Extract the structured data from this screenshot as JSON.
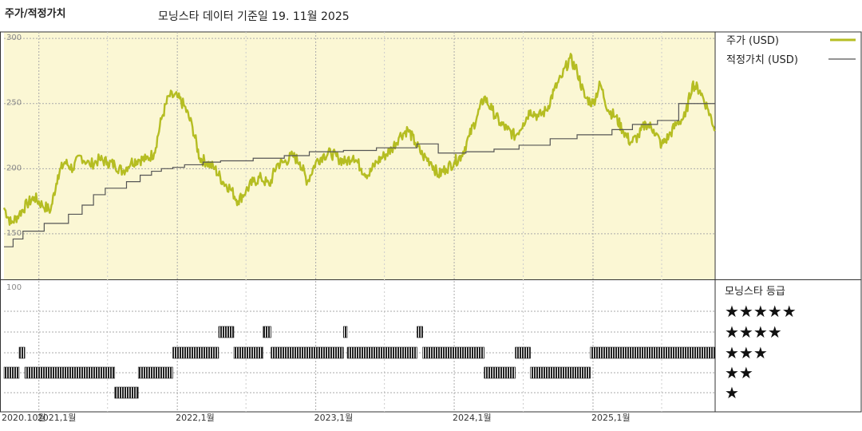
{
  "header": {
    "title": "주가/적정가치",
    "subtitle": "모닝스타 데이터 기준일 19. 11월 2025"
  },
  "colors": {
    "price": "#b5bd22",
    "fair": "#555555",
    "panel_bg": "#fbf7d4",
    "rating_bar": "#222222"
  },
  "chart_data": [
    {
      "type": "line",
      "legend_position": "right",
      "yticks": [
        150,
        200,
        250,
        300
      ],
      "ylim": [
        115,
        305
      ],
      "xlim": [
        "2020-10-01",
        "2025-11-19"
      ],
      "xtick_labels": [
        {
          "date": "2020-10-01",
          "label": "2020.10월"
        },
        {
          "date": "2021-01-01",
          "label": "2021,1월"
        },
        {
          "date": "2022-01-01",
          "label": "2022,1월"
        },
        {
          "date": "2023-01-01",
          "label": "2023,1월"
        },
        {
          "date": "2024-01-01",
          "label": "2024,1월"
        },
        {
          "date": "2025-01-01",
          "label": "2025,1월"
        }
      ],
      "grid": true,
      "series": [
        {
          "name": "주가 (USD)",
          "key": "price",
          "x": [
            "2020-10-01",
            "2020-10-20",
            "2020-11-10",
            "2020-12-01",
            "2020-12-20",
            "2021-01-10",
            "2021-02-01",
            "2021-02-20",
            "2021-03-10",
            "2021-04-01",
            "2021-04-20",
            "2021-05-15",
            "2021-06-10",
            "2021-07-01",
            "2021-07-20",
            "2021-08-10",
            "2021-09-01",
            "2021-09-20",
            "2021-10-10",
            "2021-11-01",
            "2021-11-20",
            "2021-12-10",
            "2022-01-01",
            "2022-01-20",
            "2022-02-10",
            "2022-03-01",
            "2022-03-20",
            "2022-04-10",
            "2022-05-01",
            "2022-05-20",
            "2022-06-10",
            "2022-07-01",
            "2022-07-20",
            "2022-08-10",
            "2022-09-01",
            "2022-09-20",
            "2022-10-10",
            "2022-11-01",
            "2022-11-20",
            "2022-12-10",
            "2023-01-01",
            "2023-01-20",
            "2023-02-10",
            "2023-03-01",
            "2023-03-20",
            "2023-04-10",
            "2023-05-01",
            "2023-05-20",
            "2023-06-10",
            "2023-07-01",
            "2023-07-20",
            "2023-08-10",
            "2023-09-01",
            "2023-09-20",
            "2023-10-10",
            "2023-11-01",
            "2023-11-20",
            "2023-12-10",
            "2024-01-01",
            "2024-01-20",
            "2024-02-10",
            "2024-03-01",
            "2024-03-20",
            "2024-04-10",
            "2024-05-01",
            "2024-05-20",
            "2024-06-10",
            "2024-07-01",
            "2024-07-20",
            "2024-08-10",
            "2024-09-01",
            "2024-09-20",
            "2024-10-10",
            "2024-11-01",
            "2024-11-20",
            "2024-12-10",
            "2025-01-01",
            "2025-01-20",
            "2025-02-10",
            "2025-03-01",
            "2025-03-20",
            "2025-04-10",
            "2025-05-01",
            "2025-05-20",
            "2025-06-10",
            "2025-07-01",
            "2025-07-20",
            "2025-08-10",
            "2025-09-01",
            "2025-09-20",
            "2025-10-10",
            "2025-11-01",
            "2025-11-19"
          ],
          "values": [
            170,
            158,
            165,
            173,
            178,
            172,
            168,
            195,
            205,
            200,
            210,
            203,
            207,
            205,
            203,
            198,
            205,
            207,
            207,
            212,
            238,
            256,
            255,
            248,
            232,
            208,
            205,
            200,
            190,
            185,
            175,
            183,
            190,
            193,
            187,
            203,
            205,
            210,
            205,
            190,
            205,
            210,
            212,
            208,
            205,
            210,
            200,
            195,
            205,
            210,
            215,
            225,
            230,
            220,
            210,
            205,
            195,
            200,
            205,
            210,
            225,
            240,
            255,
            245,
            235,
            230,
            225,
            235,
            245,
            240,
            245,
            260,
            270,
            285,
            275,
            255,
            250,
            265,
            245,
            240,
            230,
            220,
            225,
            235,
            230,
            218,
            225,
            235,
            240,
            265,
            260,
            245,
            230
          ]
        },
        {
          "name": "적정가치 (USD)",
          "key": "fair",
          "x": [
            "2020-10-01",
            "2020-10-25",
            "2020-11-20",
            "2021-01-15",
            "2021-03-20",
            "2021-04-25",
            "2021-05-25",
            "2021-06-25",
            "2021-08-20",
            "2021-09-25",
            "2021-10-25",
            "2021-11-20",
            "2021-12-20",
            "2022-01-20",
            "2022-03-10",
            "2022-04-25",
            "2022-07-20",
            "2022-10-10",
            "2022-12-15",
            "2023-03-15",
            "2023-06-10",
            "2023-09-25",
            "2023-11-20",
            "2024-02-01",
            "2024-04-15",
            "2024-06-20",
            "2024-09-10",
            "2024-11-20",
            "2025-02-20",
            "2025-04-15",
            "2025-06-20",
            "2025-08-15",
            "2025-11-19"
          ],
          "values": [
            140,
            146,
            152,
            158,
            165,
            172,
            180,
            185,
            190,
            195,
            198,
            200,
            201,
            203,
            205,
            206,
            208,
            210,
            213,
            214,
            216,
            219,
            212,
            213,
            215,
            218,
            223,
            226,
            230,
            234,
            237,
            250,
            250
          ]
        }
      ]
    },
    {
      "type": "heatmap",
      "title": "모닝스타 등급",
      "levels": [
        "★★★★★",
        "★★★★",
        "★★★",
        "★★",
        "★"
      ],
      "ymax_label": "100",
      "bands": [
        {
          "stars": 2,
          "start": "2020-10-01",
          "end": "2020-11-10"
        },
        {
          "stars": 3,
          "start": "2020-11-10",
          "end": "2020-11-25"
        },
        {
          "stars": 2,
          "start": "2020-11-25",
          "end": "2021-07-20"
        },
        {
          "stars": 1,
          "start": "2021-07-20",
          "end": "2021-09-20"
        },
        {
          "stars": 2,
          "start": "2021-09-20",
          "end": "2021-12-20"
        },
        {
          "stars": 3,
          "start": "2021-12-20",
          "end": "2022-04-20"
        },
        {
          "stars": 4,
          "start": "2022-04-20",
          "end": "2022-05-30"
        },
        {
          "stars": 3,
          "start": "2022-05-30",
          "end": "2022-08-15"
        },
        {
          "stars": 4,
          "start": "2022-08-15",
          "end": "2022-09-05"
        },
        {
          "stars": 3,
          "start": "2022-09-05",
          "end": "2023-03-15"
        },
        {
          "stars": 4,
          "start": "2023-03-15",
          "end": "2023-03-25"
        },
        {
          "stars": 3,
          "start": "2023-03-25",
          "end": "2023-09-25"
        },
        {
          "stars": 4,
          "start": "2023-09-25",
          "end": "2023-10-10"
        },
        {
          "stars": 3,
          "start": "2023-10-10",
          "end": "2024-03-20"
        },
        {
          "stars": 2,
          "start": "2024-03-20",
          "end": "2024-06-10"
        },
        {
          "stars": 3,
          "start": "2024-06-10",
          "end": "2024-07-20"
        },
        {
          "stars": 2,
          "start": "2024-07-20",
          "end": "2024-12-25"
        },
        {
          "stars": 3,
          "start": "2024-12-25",
          "end": "2025-11-19"
        }
      ]
    }
  ]
}
